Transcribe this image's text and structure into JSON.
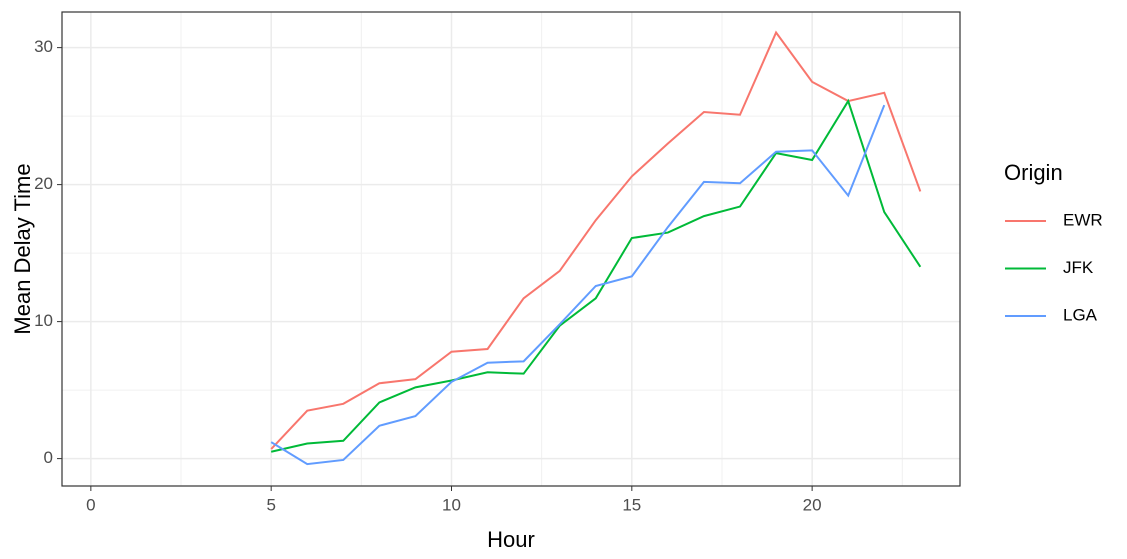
{
  "chart_data": {
    "type": "line",
    "x_label": "Hour",
    "y_label": "Mean Delay Time",
    "x": [
      5,
      6,
      7,
      8,
      9,
      10,
      11,
      12,
      13,
      14,
      15,
      16,
      17,
      18,
      19,
      20,
      21,
      22,
      23
    ],
    "series": [
      {
        "name": "EWR",
        "color": "#F8766D",
        "values": [
          0.7,
          3.5,
          4.0,
          5.5,
          5.8,
          7.8,
          8.0,
          11.7,
          13.7,
          17.4,
          20.6,
          23.0,
          25.3,
          25.1,
          31.1,
          27.5,
          26.1,
          26.7,
          19.5
        ]
      },
      {
        "name": "JFK",
        "color": "#00BA38",
        "values": [
          0.5,
          1.1,
          1.3,
          4.1,
          5.2,
          5.7,
          6.3,
          6.2,
          9.7,
          11.7,
          16.1,
          16.5,
          17.7,
          18.4,
          22.3,
          21.8,
          26.1,
          18.0,
          14.0
        ]
      },
      {
        "name": "LGA",
        "color": "#619CFF",
        "values": [
          1.2,
          -0.4,
          -0.1,
          2.4,
          3.1,
          5.6,
          7.0,
          7.1,
          9.8,
          12.6,
          13.3,
          16.9,
          20.2,
          20.1,
          22.4,
          22.5,
          19.2,
          25.8,
          null
        ]
      }
    ],
    "legend_title": "Origin",
    "legend_position": "right",
    "xlim": [
      -0.8,
      24.1
    ],
    "xticks": [
      0,
      5,
      10,
      15,
      20
    ],
    "ylim": [
      -2.0,
      32.6
    ],
    "yticks": [
      0,
      10,
      20,
      30
    ],
    "grid": true
  }
}
